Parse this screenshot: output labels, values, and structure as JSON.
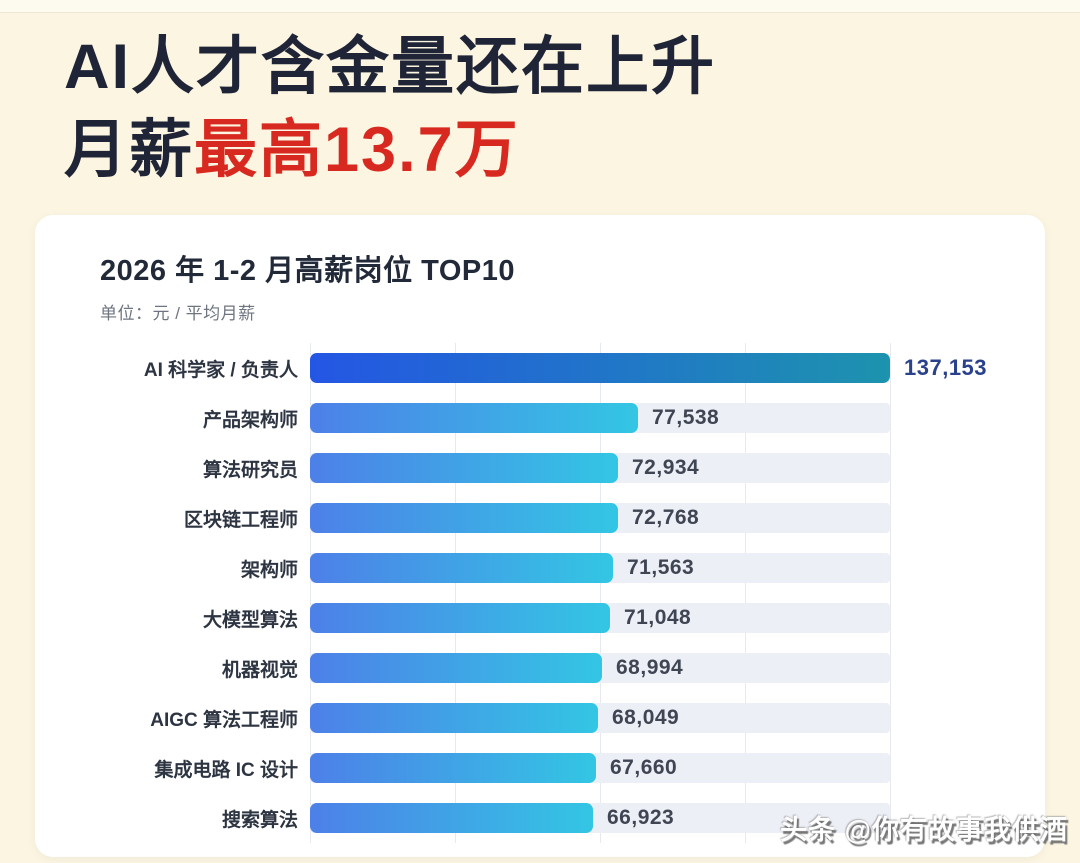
{
  "header": {
    "title_line1": "AI人才含金量还在上升",
    "title_line2_prefix": "月薪",
    "title_line2_highlight": "最高13.7万"
  },
  "chart_data": {
    "type": "bar",
    "orientation": "horizontal",
    "title": "2026 年 1-2 月高薪岗位 TOP10",
    "unit_label": "单位：元 / 平均月薪",
    "categories": [
      "AI 科学家 / 负责人",
      "产品架构师",
      "算法研究员",
      "区块链工程师",
      "架构师",
      "大模型算法",
      "机器视觉",
      "AIGC 算法工程师",
      "集成电路 IC 设计",
      "搜索算法"
    ],
    "values": [
      137153,
      77538,
      72934,
      72768,
      71563,
      71048,
      68994,
      68049,
      67660,
      66923
    ],
    "value_labels": [
      "137,153",
      "77,538",
      "72,934",
      "72,768",
      "71,563",
      "71,048",
      "68,994",
      "68,049",
      "67,660",
      "66,923"
    ],
    "xlim": [
      0,
      137153
    ],
    "gridline_values": [
      0,
      35000,
      70000,
      105000,
      140000
    ],
    "grid": "vertical-faint",
    "legend": "none"
  },
  "colors": {
    "background": "#fbf5e2",
    "card": "#ffffff",
    "headline_text": "#1f2537",
    "headline_highlight": "#d7291f",
    "bar_first_start": "#2456e4",
    "bar_first_end": "#1d93ae",
    "bar_start": "#4d80e8",
    "bar_end": "#33c6e4",
    "track": "#edeff6",
    "value_first": "#2a418c",
    "value_default": "#3f4553"
  },
  "watermark": {
    "text": "头条 @你有故事我供酒"
  }
}
